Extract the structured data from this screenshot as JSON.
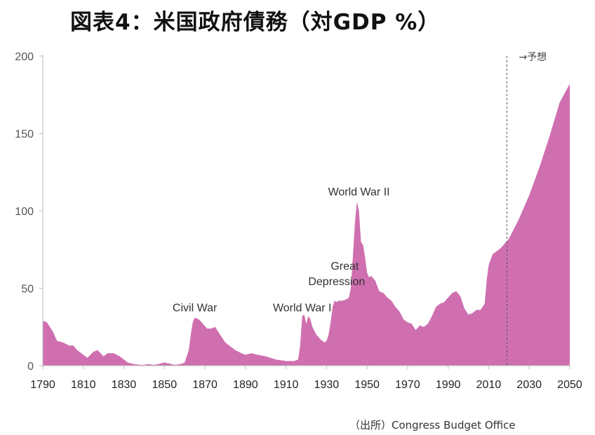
{
  "title": "図表4：米国政府債務（対GDP %）",
  "source": "（出所）Congress Budget Office",
  "chart_data": {
    "type": "area",
    "color": "#cf6fb0",
    "xlim": [
      1790,
      2050
    ],
    "ylim": [
      0,
      200
    ],
    "x_ticks": [
      "1790",
      "1810",
      "1830",
      "1850",
      "1870",
      "1890",
      "1910",
      "1930",
      "1950",
      "1970",
      "1990",
      "2010",
      "2030",
      "2050"
    ],
    "y_ticks": [
      "0",
      "50",
      "100",
      "150",
      "200"
    ],
    "grid": false,
    "forecast_start": 2019,
    "forecast_label": "→予想",
    "annotations": [
      {
        "label": "Civil War",
        "x": 1865,
        "y": 35
      },
      {
        "label": "World War I",
        "x": 1918,
        "y": 35
      },
      {
        "label": "Great",
        "x": 1939,
        "y": 62
      },
      {
        "label": "Depression",
        "x": 1935,
        "y": 52
      },
      {
        "label": "World War II",
        "x": 1946,
        "y": 110
      }
    ],
    "x": [
      1790,
      1792,
      1795,
      1797,
      1800,
      1803,
      1805,
      1807,
      1810,
      1812,
      1815,
      1817,
      1820,
      1822,
      1825,
      1828,
      1830,
      1832,
      1835,
      1838,
      1840,
      1842,
      1845,
      1847,
      1850,
      1852,
      1855,
      1858,
      1860,
      1862,
      1863,
      1864,
      1865,
      1867,
      1869,
      1871,
      1873,
      1875,
      1878,
      1880,
      1882,
      1885,
      1888,
      1890,
      1893,
      1896,
      1900,
      1905,
      1910,
      1914,
      1916,
      1917,
      1918,
      1919,
      1920,
      1921,
      1922,
      1923,
      1925,
      1927,
      1929,
      1930,
      1931,
      1932,
      1933,
      1934,
      1935,
      1936,
      1938,
      1940,
      1941,
      1942,
      1943,
      1944,
      1945,
      1946,
      1947,
      1948,
      1949,
      1950,
      1951,
      1952,
      1954,
      1956,
      1958,
      1960,
      1962,
      1964,
      1966,
      1968,
      1970,
      1972,
      1974,
      1976,
      1978,
      1980,
      1982,
      1984,
      1986,
      1988,
      1990,
      1992,
      1994,
      1996,
      1998,
      2000,
      2002,
      2004,
      2006,
      2008,
      2009,
      2010,
      2012,
      2014,
      2016,
      2018,
      2020,
      2025,
      2030,
      2035,
      2040,
      2045,
      2050
    ],
    "y": [
      29,
      28,
      22,
      16,
      15,
      13,
      13,
      10,
      7,
      5,
      9,
      10,
      6,
      8,
      8,
      6,
      4,
      2,
      1,
      0.5,
      0.5,
      1,
      0.5,
      1,
      2,
      1.5,
      0.5,
      1,
      2,
      10,
      20,
      28,
      31,
      30,
      27,
      24,
      24,
      25,
      19,
      15,
      13,
      10,
      8,
      7,
      8,
      7,
      6,
      4,
      3,
      3,
      4,
      13,
      32,
      33,
      27,
      32,
      30,
      25,
      20,
      17,
      15,
      16,
      20,
      28,
      38,
      42,
      41,
      42,
      42,
      43,
      44,
      50,
      70,
      92,
      106,
      100,
      80,
      78,
      70,
      60,
      57,
      58,
      55,
      48,
      47,
      44,
      42,
      38,
      35,
      30,
      28,
      27,
      23,
      26,
      25,
      27,
      32,
      38,
      40,
      41,
      44,
      47,
      48,
      45,
      37,
      33,
      34,
      36,
      36,
      40,
      55,
      65,
      72,
      74,
      76,
      79,
      82,
      95,
      110,
      128,
      148,
      170,
      182
    ]
  }
}
